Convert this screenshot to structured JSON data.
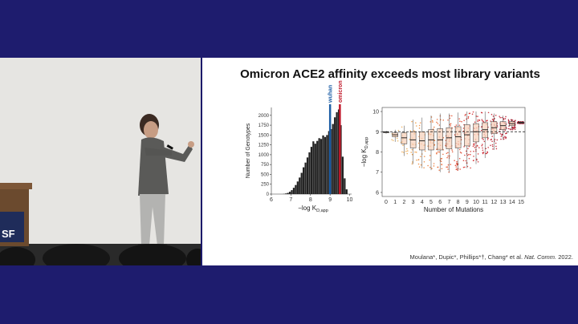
{
  "slide": {
    "title": "Omicron ACE2 affinity exceeds most library variants",
    "citation_main": "Moulana*, Dupic*, Phillips*†, Chang* et al. ",
    "citation_journal": "Nat. Comm.",
    "citation_year": " 2022."
  },
  "stage": {
    "logo_text": "SF"
  },
  "colors": {
    "frame": "#1e1c6e",
    "wuhan": "#1f5fa6",
    "omicron": "#c0182a",
    "histogram": "#222222"
  },
  "chart_data": [
    {
      "type": "bar",
      "xlabel": "−log K",
      "xlabel_sub": "D,app",
      "ylabel": "Number of Genotypes",
      "xticks": [
        "6",
        "7",
        "8",
        "9",
        "10"
      ],
      "yticks": [
        "0",
        "250",
        "500",
        "750",
        "1000",
        "1250",
        "1500",
        "1750",
        "2000"
      ],
      "xlim": [
        6,
        10.1
      ],
      "ylim": [
        0,
        2200
      ],
      "bin_width": 0.1,
      "bin_starts": [
        6.6,
        6.7,
        6.8,
        6.9,
        7.0,
        7.1,
        7.2,
        7.3,
        7.4,
        7.5,
        7.6,
        7.7,
        7.8,
        7.9,
        8.0,
        8.1,
        8.2,
        8.3,
        8.4,
        8.5,
        8.6,
        8.7,
        8.8,
        8.9,
        9.0,
        9.1,
        9.2,
        9.3,
        9.4,
        9.5,
        9.6,
        9.7,
        9.8
      ],
      "values": [
        5,
        15,
        30,
        60,
        100,
        160,
        230,
        320,
        420,
        540,
        680,
        800,
        930,
        1060,
        1200,
        1340,
        1280,
        1350,
        1420,
        1400,
        1490,
        1450,
        1500,
        1600,
        1650,
        1780,
        1950,
        2080,
        2150,
        1750,
        950,
        400,
        120
      ],
      "annotations": [
        {
          "label": "wuhan",
          "x": 9.0
        },
        {
          "label": "omicron",
          "x": 9.5
        }
      ]
    },
    {
      "type": "box",
      "xlabel": "Number of Mutations",
      "ylabel": "−log K",
      "ylabel_sub": "D,app",
      "categories": [
        "0",
        "1",
        "2",
        "3",
        "4",
        "5",
        "6",
        "7",
        "8",
        "9",
        "10",
        "11",
        "12",
        "13",
        "14",
        "15"
      ],
      "yticks": [
        "6",
        "7",
        "8",
        "9",
        "10"
      ],
      "ylim": [
        5.8,
        10.2
      ],
      "reference_line": 9.0,
      "boxes": [
        {
          "q1": 8.95,
          "median": 8.98,
          "q3": 9.0,
          "lo": 8.9,
          "hi": 9.05
        },
        {
          "q1": 8.75,
          "median": 8.85,
          "q3": 8.95,
          "lo": 8.5,
          "hi": 9.1
        },
        {
          "q1": 8.4,
          "median": 8.7,
          "q3": 8.95,
          "lo": 7.8,
          "hi": 9.3
        },
        {
          "q1": 8.2,
          "median": 8.6,
          "q3": 9.0,
          "lo": 7.4,
          "hi": 9.6
        },
        {
          "q1": 8.1,
          "median": 8.55,
          "q3": 9.0,
          "lo": 7.2,
          "hi": 9.7
        },
        {
          "q1": 8.1,
          "median": 8.6,
          "q3": 9.1,
          "lo": 7.1,
          "hi": 9.8
        },
        {
          "q1": 8.1,
          "median": 8.6,
          "q3": 9.15,
          "lo": 7.0,
          "hi": 9.9
        },
        {
          "q1": 8.15,
          "median": 8.7,
          "q3": 9.2,
          "lo": 7.0,
          "hi": 9.9
        },
        {
          "q1": 8.2,
          "median": 8.75,
          "q3": 9.25,
          "lo": 7.1,
          "hi": 9.95
        },
        {
          "q1": 8.3,
          "median": 8.85,
          "q3": 9.35,
          "lo": 7.2,
          "hi": 10.0
        },
        {
          "q1": 8.5,
          "median": 9.0,
          "q3": 9.4,
          "lo": 7.4,
          "hi": 10.0
        },
        {
          "q1": 8.7,
          "median": 9.1,
          "q3": 9.45,
          "lo": 7.7,
          "hi": 10.0
        },
        {
          "q1": 8.9,
          "median": 9.2,
          "q3": 9.5,
          "lo": 8.1,
          "hi": 9.9
        },
        {
          "q1": 9.1,
          "median": 9.3,
          "q3": 9.5,
          "lo": 8.6,
          "hi": 9.8
        },
        {
          "q1": 9.3,
          "median": 9.4,
          "q3": 9.5,
          "lo": 9.1,
          "hi": 9.6
        },
        {
          "q1": 9.42,
          "median": 9.45,
          "q3": 9.48,
          "lo": 9.4,
          "hi": 9.5
        }
      ]
    }
  ]
}
